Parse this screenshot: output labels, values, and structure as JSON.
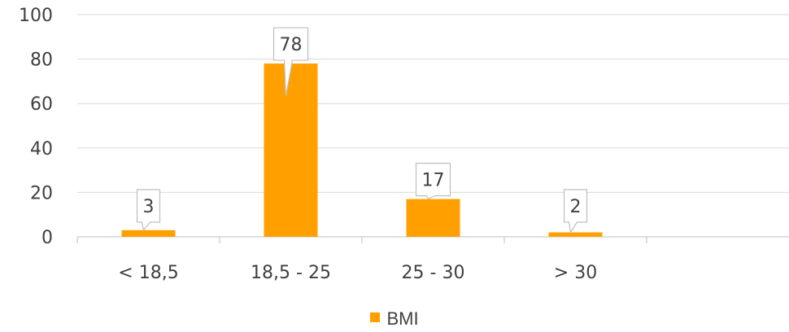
{
  "chart_data": {
    "type": "bar",
    "categories": [
      "< 18,5",
      "18,5 - 25",
      "25 - 30",
      "> 30",
      ""
    ],
    "series": [
      {
        "name": "BMI",
        "values": [
          3,
          78,
          17,
          2,
          null
        ]
      }
    ],
    "data_labels": [
      "3",
      "78",
      "17",
      "2",
      ""
    ],
    "ylim": [
      0,
      100
    ],
    "yticks": [
      "0",
      "20",
      "40",
      "60",
      "80",
      "100"
    ],
    "ytick_values": [
      0,
      20,
      40,
      60,
      80,
      100
    ],
    "grid": true,
    "legend": "bottom",
    "colors": {
      "bar": "#FFA000",
      "grid": "#D9D9D9",
      "axis": "#BFBFBF",
      "callout_border": "#BFBFBF"
    }
  }
}
